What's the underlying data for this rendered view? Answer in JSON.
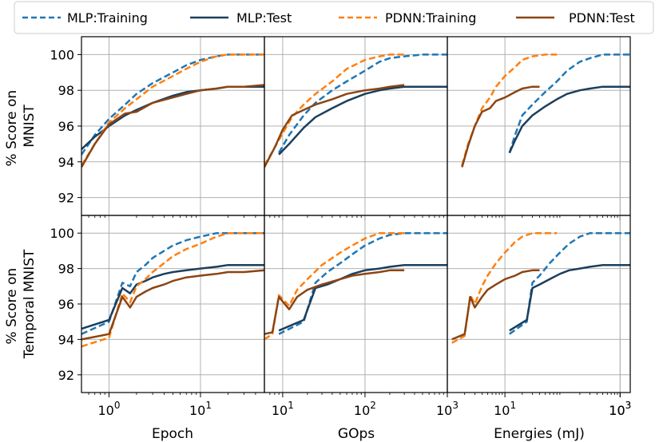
{
  "legend": {
    "items": [
      {
        "label": "MLP:Training",
        "color": "#1f77b4",
        "dash": true
      },
      {
        "label": "MLP:Test",
        "color": "#1b3f5e",
        "dash": false
      },
      {
        "label": "PDNN:Training",
        "color": "#ff7f0e",
        "dash": true
      },
      {
        "label": "PDNN:Test",
        "color": "#8b4513",
        "dash": false
      }
    ]
  },
  "chart_data": {
    "type": "line",
    "layout": "2 rows x 3 columns, shared y within row, log-scaled x",
    "row_ylabels": [
      [
        "% Score on",
        "MNIST"
      ],
      [
        "% Score on",
        "Temporal MNIST"
      ]
    ],
    "col_xlabels": [
      "Epoch",
      "GOps",
      "Energies (mJ)"
    ],
    "ylim": [
      91,
      101
    ],
    "yticks": [
      92,
      94,
      96,
      98,
      100
    ],
    "ytick_labels": [
      "92",
      "94",
      "96",
      "98",
      "100"
    ],
    "columns": [
      {
        "xlim": [
          0.5,
          50
        ],
        "xticks": [
          {
            "value": 1,
            "base": "10",
            "exp": "0"
          },
          {
            "value": 10,
            "base": "10",
            "exp": "1"
          }
        ]
      },
      {
        "xlim": [
          6,
          1000
        ],
        "xticks": [
          {
            "value": 10,
            "base": "10",
            "exp": "1"
          },
          {
            "value": 100,
            "base": "10",
            "exp": "2"
          },
          {
            "value": 1000,
            "base": "10",
            "exp": "3"
          }
        ]
      },
      {
        "xlim": [
          1,
          1500
        ],
        "xticks": [
          {
            "value": 1000,
            "base": "10",
            "exp": "3"
          },
          {
            "value": 10,
            "base": "10",
            "exp": "1"
          },
          {
            "value": 1000,
            "base": "10",
            "exp": "3"
          }
        ]
      }
    ],
    "panels": [
      {
        "row": 0,
        "col": 0,
        "xlabel": "Epoch",
        "series": [
          {
            "name": "MLP:Training",
            "x": [
              0.5,
              0.7,
              1,
              1.5,
              2,
              3,
              5,
              7,
              10,
              15,
              20,
              30,
              50
            ],
            "y": [
              94.4,
              95.5,
              96.4,
              97.2,
              97.8,
              98.4,
              99.0,
              99.4,
              99.7,
              99.9,
              100.0,
              100.0,
              100.0
            ]
          },
          {
            "name": "MLP:Test",
            "x": [
              0.5,
              0.7,
              1,
              1.5,
              2,
              3,
              5,
              7,
              10,
              15,
              20,
              30,
              50
            ],
            "y": [
              94.7,
              95.4,
              96.0,
              96.6,
              96.9,
              97.3,
              97.7,
              97.9,
              98.0,
              98.1,
              98.2,
              98.2,
              98.2
            ]
          },
          {
            "name": "PDNN:Training",
            "x": [
              0.5,
              0.7,
              1,
              1.5,
              2,
              3,
              5,
              7,
              10,
              15,
              20,
              30,
              50
            ],
            "y": [
              93.8,
              95.0,
              96.2,
              97.0,
              97.5,
              98.2,
              98.8,
              99.2,
              99.6,
              99.9,
              100.0,
              100.0,
              100.0
            ]
          },
          {
            "name": "PDNN:Test",
            "x": [
              0.5,
              0.7,
              1,
              1.5,
              2,
              3,
              5,
              7,
              10,
              15,
              20,
              30,
              50
            ],
            "y": [
              93.7,
              95.0,
              96.1,
              96.7,
              96.8,
              97.3,
              97.6,
              97.8,
              98.0,
              98.1,
              98.2,
              98.2,
              98.3
            ]
          }
        ]
      },
      {
        "row": 0,
        "col": 1,
        "xlabel": "GOps",
        "series": [
          {
            "name": "MLP:Training",
            "x": [
              9,
              12,
              18,
              25,
              40,
              60,
              100,
              150,
              200,
              300,
              500,
              1000
            ],
            "y": [
              94.5,
              95.5,
              96.6,
              97.3,
              98.0,
              98.5,
              99.1,
              99.6,
              99.8,
              99.9,
              100.0,
              100.0
            ]
          },
          {
            "name": "MLP:Test",
            "x": [
              9,
              12,
              18,
              25,
              40,
              60,
              100,
              150,
              200,
              300,
              500,
              1000
            ],
            "y": [
              94.4,
              95.0,
              95.9,
              96.5,
              97.0,
              97.4,
              97.8,
              98.0,
              98.1,
              98.2,
              98.2,
              98.2
            ]
          },
          {
            "name": "PDNN:Training",
            "x": [
              6,
              8,
              10,
              13,
              18,
              25,
              40,
              60,
              100,
              150,
              200,
              300
            ],
            "y": [
              93.8,
              94.8,
              95.6,
              96.5,
              97.2,
              97.8,
              98.5,
              99.2,
              99.7,
              99.9,
              100.0,
              100.0
            ]
          },
          {
            "name": "PDNN:Test",
            "x": [
              6,
              8,
              10,
              13,
              18,
              25,
              40,
              60,
              100,
              150,
              200,
              300
            ],
            "y": [
              93.7,
              94.8,
              95.8,
              96.6,
              96.9,
              97.2,
              97.5,
              97.8,
              98.0,
              98.1,
              98.2,
              98.3
            ]
          }
        ]
      },
      {
        "row": 0,
        "col": 2,
        "xlabel": "Energies (mJ)",
        "series": [
          {
            "name": "MLP:Training",
            "x": [
              12,
              15,
              20,
              30,
              50,
              80,
              120,
              200,
              300,
              500,
              800,
              1500
            ],
            "y": [
              94.5,
              95.5,
              96.6,
              97.2,
              97.9,
              98.5,
              99.1,
              99.6,
              99.8,
              100.0,
              100.0,
              100.0
            ]
          },
          {
            "name": "MLP:Test",
            "x": [
              12,
              15,
              20,
              30,
              50,
              80,
              120,
              200,
              300,
              500,
              800,
              1500
            ],
            "y": [
              94.5,
              95.2,
              96.0,
              96.6,
              97.1,
              97.5,
              97.8,
              98.0,
              98.1,
              98.2,
              98.2,
              98.2
            ]
          },
          {
            "name": "PDNN:Training",
            "x": [
              1.8,
              2.3,
              3,
              4,
              5.5,
              7,
              10,
              15,
              20,
              30,
              50,
              80
            ],
            "y": [
              93.8,
              95.0,
              96.0,
              97.0,
              97.6,
              98.2,
              98.8,
              99.3,
              99.7,
              99.9,
              100.0,
              100.0
            ]
          },
          {
            "name": "PDNN:Test",
            "x": [
              1.8,
              2.3,
              3,
              4,
              5.5,
              7,
              10,
              15,
              20,
              30,
              40
            ],
            "y": [
              93.7,
              94.9,
              96.0,
              96.8,
              97.0,
              97.4,
              97.6,
              97.9,
              98.1,
              98.2,
              98.2
            ]
          }
        ]
      },
      {
        "row": 1,
        "col": 0,
        "xlabel": "Epoch",
        "series": [
          {
            "name": "MLP:Training",
            "x": [
              0.5,
              1,
              1.4,
              1.7,
              2,
              2.5,
              3,
              4,
              5,
              7,
              10,
              15,
              20,
              30,
              50
            ],
            "y": [
              94.3,
              95.0,
              97.2,
              97.0,
              97.8,
              98.2,
              98.6,
              99.0,
              99.3,
              99.6,
              99.8,
              100.0,
              100.0,
              100.0,
              100.0
            ]
          },
          {
            "name": "MLP:Test",
            "x": [
              0.5,
              1,
              1.4,
              1.7,
              2,
              2.5,
              3,
              4,
              5,
              7,
              10,
              15,
              20,
              30,
              50
            ],
            "y": [
              94.6,
              95.1,
              96.9,
              96.6,
              97.1,
              97.3,
              97.5,
              97.7,
              97.8,
              97.9,
              98.0,
              98.1,
              98.2,
              98.2,
              98.2
            ]
          },
          {
            "name": "PDNN:Training",
            "x": [
              0.5,
              1,
              1.4,
              1.7,
              2,
              2.5,
              3,
              4,
              5,
              7,
              10,
              15,
              20,
              30,
              50
            ],
            "y": [
              93.6,
              94.1,
              96.6,
              96.1,
              97.0,
              97.4,
              97.8,
              98.3,
              98.7,
              99.1,
              99.4,
              99.8,
              100.0,
              100.0,
              100.0
            ]
          },
          {
            "name": "PDNN:Test",
            "x": [
              0.5,
              1,
              1.4,
              1.7,
              2,
              2.5,
              3,
              4,
              5,
              7,
              10,
              15,
              20,
              30,
              50
            ],
            "y": [
              94.0,
              94.3,
              96.4,
              95.8,
              96.4,
              96.7,
              96.9,
              97.1,
              97.3,
              97.5,
              97.6,
              97.7,
              97.8,
              97.8,
              97.9
            ]
          }
        ]
      },
      {
        "row": 1,
        "col": 1,
        "xlabel": "GOps",
        "series": [
          {
            "name": "MLP:Training",
            "x": [
              9,
              18,
              25,
              35,
              50,
              70,
              100,
              150,
              200,
              300,
              500,
              1000
            ],
            "y": [
              94.3,
              95.0,
              97.2,
              97.8,
              98.3,
              98.8,
              99.3,
              99.7,
              99.9,
              100.0,
              100.0,
              100.0
            ]
          },
          {
            "name": "MLP:Test",
            "x": [
              9,
              18,
              25,
              35,
              50,
              70,
              100,
              150,
              200,
              300,
              500,
              1000
            ],
            "y": [
              94.5,
              95.1,
              96.9,
              97.1,
              97.4,
              97.7,
              97.9,
              98.0,
              98.1,
              98.2,
              98.2,
              98.2
            ]
          },
          {
            "name": "PDNN:Training",
            "x": [
              6,
              7.5,
              9,
              12,
              15,
              20,
              30,
              50,
              70,
              100,
              150,
              200,
              300
            ],
            "y": [
              94.0,
              94.3,
              96.5,
              95.9,
              96.8,
              97.4,
              98.2,
              98.9,
              99.3,
              99.7,
              100.0,
              100.0,
              100.0
            ]
          },
          {
            "name": "PDNN:Test",
            "x": [
              6,
              7.5,
              9,
              12,
              15,
              20,
              30,
              50,
              70,
              100,
              150,
              200,
              300
            ],
            "y": [
              94.3,
              94.4,
              96.4,
              95.7,
              96.4,
              96.8,
              97.1,
              97.4,
              97.6,
              97.7,
              97.8,
              97.9,
              97.9
            ]
          }
        ]
      },
      {
        "row": 1,
        "col": 2,
        "xlabel": "Energies (mJ)",
        "series": [
          {
            "name": "MLP:Training",
            "x": [
              12,
              24,
              30,
              40,
              60,
              90,
              130,
              200,
              300,
              500,
              800,
              1500
            ],
            "y": [
              94.3,
              95.0,
              97.2,
              97.6,
              98.3,
              98.9,
              99.4,
              99.8,
              100.0,
              100.0,
              100.0,
              100.0
            ]
          },
          {
            "name": "MLP:Test",
            "x": [
              12,
              24,
              30,
              40,
              60,
              90,
              130,
              200,
              300,
              500,
              800,
              1500
            ],
            "y": [
              94.5,
              95.1,
              96.9,
              97.1,
              97.4,
              97.7,
              97.9,
              98.0,
              98.1,
              98.2,
              98.2,
              98.2
            ]
          },
          {
            "name": "PDNN:Training",
            "x": [
              1.2,
              2,
              2.5,
              3,
              4,
              5,
              7,
              10,
              15,
              20,
              30,
              50,
              80
            ],
            "y": [
              93.8,
              94.2,
              96.5,
              96.0,
              97.0,
              97.6,
              98.3,
              98.9,
              99.5,
              99.8,
              100.0,
              100.0,
              100.0
            ]
          },
          {
            "name": "PDNN:Test",
            "x": [
              1.2,
              2,
              2.5,
              3,
              4,
              5,
              7,
              10,
              15,
              20,
              30,
              40
            ],
            "y": [
              94.0,
              94.3,
              96.4,
              95.8,
              96.4,
              96.8,
              97.1,
              97.4,
              97.6,
              97.8,
              97.9,
              97.9
            ]
          }
        ]
      }
    ]
  }
}
